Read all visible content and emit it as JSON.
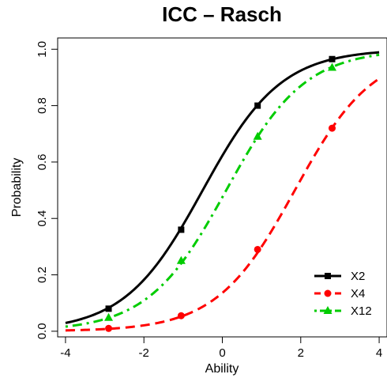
{
  "chart_data": {
    "type": "line",
    "title": "ICC – Rasch",
    "xlabel": "Ability",
    "ylabel": "Probability",
    "xlim": [
      -4.2,
      4.2
    ],
    "ylim": [
      -0.02,
      1.04
    ],
    "xticks": [
      -4,
      -2,
      0,
      2,
      4
    ],
    "yticks": [
      0.0,
      0.2,
      0.4,
      0.6,
      0.8,
      1.0
    ],
    "xtick_labels": [
      "-4",
      "-2",
      "0",
      "2",
      "4"
    ],
    "ytick_labels": [
      "0.0",
      "0.2",
      "0.4",
      "0.6",
      "0.8",
      "1.0"
    ],
    "grid": false,
    "legend_position": "bottom-right",
    "series": [
      {
        "name": "X2",
        "color": "#000000",
        "line_style": "solid",
        "marker": "square",
        "difficulty": -0.5,
        "x": [
          -4.0,
          -3.5,
          -3.0,
          -2.5,
          -2.0,
          -1.5,
          -1.0,
          -0.5,
          0.0,
          0.5,
          1.0,
          1.5,
          2.0,
          2.5,
          3.0,
          3.5,
          4.0
        ],
        "y": [
          0.029,
          0.047,
          0.076,
          0.119,
          0.182,
          0.269,
          0.378,
          0.5,
          0.622,
          0.731,
          0.818,
          0.881,
          0.924,
          0.953,
          0.971,
          0.982,
          0.989
        ],
        "marker_x": [
          -2.9,
          -1.05,
          0.9,
          2.8
        ],
        "marker_y": [
          0.08,
          0.36,
          0.8,
          0.965
        ]
      },
      {
        "name": "X4",
        "color": "#ff0000",
        "line_style": "dashed",
        "marker": "circle",
        "difficulty": 1.85,
        "x": [
          -4.0,
          -3.5,
          -3.0,
          -2.5,
          -2.0,
          -1.5,
          -1.0,
          -0.5,
          0.0,
          0.5,
          1.0,
          1.5,
          2.0,
          2.5,
          3.0,
          3.5,
          4.0
        ],
        "y": [
          0.003,
          0.005,
          0.008,
          0.013,
          0.021,
          0.034,
          0.055,
          0.087,
          0.136,
          0.206,
          0.3,
          0.413,
          0.537,
          0.657,
          0.76,
          0.838,
          0.896
        ],
        "marker_x": [
          -2.9,
          -1.05,
          0.9,
          2.8
        ],
        "marker_y": [
          0.01,
          0.055,
          0.29,
          0.72
        ]
      },
      {
        "name": "X12",
        "color": "#00cc00",
        "line_style": "dot-dash",
        "marker": "triangle",
        "difficulty": 0.1,
        "x": [
          -4.0,
          -3.5,
          -3.0,
          -2.5,
          -2.0,
          -1.5,
          -1.0,
          -0.5,
          0.0,
          0.5,
          1.0,
          1.5,
          2.0,
          2.5,
          3.0,
          3.5,
          4.0
        ],
        "y": [
          0.016,
          0.026,
          0.043,
          0.069,
          0.109,
          0.168,
          0.25,
          0.354,
          0.475,
          0.599,
          0.711,
          0.802,
          0.87,
          0.917,
          0.948,
          0.967,
          0.98
        ],
        "marker_x": [
          -2.9,
          -1.05,
          0.9,
          2.8
        ],
        "marker_y": [
          0.048,
          0.25,
          0.69,
          0.935
        ]
      }
    ]
  }
}
